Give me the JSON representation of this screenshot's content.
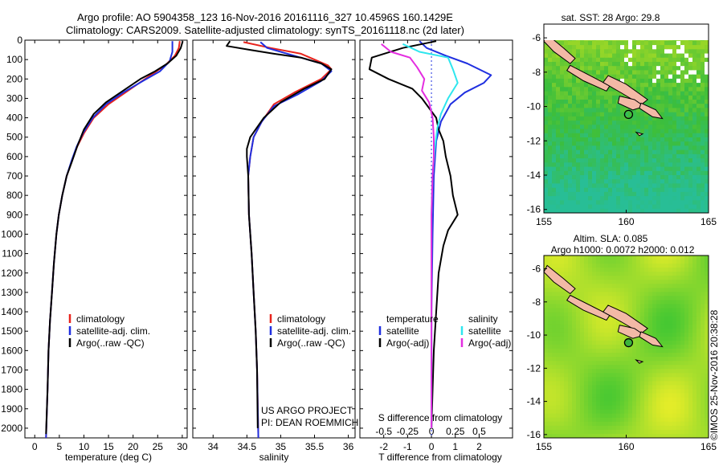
{
  "header": {
    "line1": "Argo profile: AO 5904358_123 16-Nov-2016 20161116_327 10.4596S 160.1429E",
    "line2": "Climatology: CARS2009. Satellite-adjusted climatology: synTS_20161118.nc (2d later)"
  },
  "colors": {
    "clim": "#e8231c",
    "sat": "#1f2fe0",
    "argo": "#000000",
    "sat_s": "#2ee6ee",
    "argo_s": "#e42ee0"
  },
  "credit": "©IMOS 25-Nov-2016 20:38:28",
  "chart_data": [
    {
      "type": "line",
      "panel": "temperature",
      "xlabel": "temperature (deg C)",
      "ylabel": "",
      "xlim": [
        -2,
        31
      ],
      "ylim": [
        2050,
        0
      ],
      "xticks": [
        0,
        5,
        10,
        15,
        20,
        25,
        30
      ],
      "yticks": [
        0,
        100,
        200,
        300,
        400,
        500,
        600,
        700,
        800,
        900,
        1000,
        1100,
        1200,
        1300,
        1400,
        1500,
        1600,
        1700,
        1800,
        1900,
        2000
      ],
      "legend": [
        "climatology",
        "satellite-adj. clim.",
        "Argo(..raw -QC)"
      ],
      "series": [
        {
          "name": "climatology",
          "color": "#e8231c",
          "points": [
            [
              29.5,
              5
            ],
            [
              29.3,
              40
            ],
            [
              28.5,
              80
            ],
            [
              26.5,
              130
            ],
            [
              23,
              190
            ],
            [
              19,
              260
            ],
            [
              15,
              330
            ],
            [
              12,
              400
            ],
            [
              10,
              480
            ],
            [
              8.6,
              550
            ],
            [
              7.6,
              620
            ],
            [
              6.5,
              700
            ],
            [
              5.6,
              800
            ],
            [
              4.9,
              900
            ],
            [
              4.4,
              1000
            ],
            [
              3.9,
              1150
            ],
            [
              3.5,
              1300
            ],
            [
              3.1,
              1450
            ],
            [
              2.8,
              1600
            ],
            [
              2.6,
              1800
            ],
            [
              2.3,
              2050
            ]
          ]
        },
        {
          "name": "satellite-adj. clim.",
          "color": "#1f2fe0",
          "points": [
            [
              28.0,
              5
            ],
            [
              28.0,
              60
            ],
            [
              27.4,
              110
            ],
            [
              25.5,
              160
            ],
            [
              22,
              210
            ],
            [
              18,
              270
            ],
            [
              14.5,
              330
            ],
            [
              11.8,
              400
            ],
            [
              9.8,
              480
            ],
            [
              8.5,
              550
            ],
            [
              7.5,
              620
            ],
            [
              6.5,
              700
            ],
            [
              5.6,
              800
            ],
            [
              4.9,
              900
            ],
            [
              4.4,
              1000
            ],
            [
              3.9,
              1150
            ],
            [
              3.5,
              1300
            ],
            [
              3.1,
              1450
            ],
            [
              2.8,
              1600
            ],
            [
              2.6,
              1800
            ],
            [
              2.3,
              2050
            ]
          ]
        },
        {
          "name": "Argo(..raw -QC)",
          "color": "#000000",
          "points": [
            [
              30.1,
              5
            ],
            [
              29.7,
              40
            ],
            [
              28.8,
              80
            ],
            [
              27,
              120
            ],
            [
              24.5,
              160
            ],
            [
              21.5,
              200
            ],
            [
              18,
              260
            ],
            [
              14.5,
              320
            ],
            [
              12,
              380
            ],
            [
              10,
              460
            ],
            [
              8.6,
              550
            ],
            [
              7.5,
              630
            ],
            [
              6.5,
              700
            ],
            [
              5.6,
              800
            ],
            [
              4.9,
              900
            ],
            [
              4.4,
              1000
            ],
            [
              3.9,
              1150
            ],
            [
              3.5,
              1300
            ],
            [
              3.1,
              1450
            ],
            [
              2.8,
              1600
            ],
            [
              2.6,
              1800
            ],
            [
              2.3,
              2030
            ]
          ]
        }
      ]
    },
    {
      "type": "line",
      "panel": "salinity",
      "xlabel": "salinity",
      "ylabel": "",
      "xlim": [
        33.7,
        36.1
      ],
      "ylim": [
        2050,
        0
      ],
      "xticks": [
        34,
        34.5,
        35,
        35.5,
        36
      ],
      "legend": [
        "climatology",
        "satellite-adj. clim.",
        "Argo(..raw -QC)"
      ],
      "series": [
        {
          "name": "climatology",
          "color": "#e8231c",
          "points": [
            [
              34.45,
              10
            ],
            [
              34.85,
              40
            ],
            [
              35.3,
              70
            ],
            [
              35.7,
              130
            ],
            [
              35.75,
              150
            ],
            [
              35.6,
              200
            ],
            [
              35.2,
              270
            ],
            [
              34.9,
              330
            ],
            [
              34.72,
              420
            ],
            [
              34.6,
              500
            ],
            [
              34.55,
              600
            ],
            [
              34.52,
              700
            ],
            [
              34.53,
              900
            ],
            [
              34.57,
              1100
            ],
            [
              34.6,
              1300
            ],
            [
              34.63,
              1500
            ],
            [
              34.65,
              1700
            ],
            [
              34.67,
              2050
            ]
          ]
        },
        {
          "name": "satellite-adj. clim.",
          "color": "#1f2fe0",
          "points": [
            [
              34.7,
              10
            ],
            [
              34.8,
              40
            ],
            [
              35.1,
              70
            ],
            [
              35.6,
              120
            ],
            [
              35.75,
              160
            ],
            [
              35.6,
              210
            ],
            [
              35.25,
              280
            ],
            [
              34.9,
              340
            ],
            [
              34.72,
              420
            ],
            [
              34.6,
              500
            ],
            [
              34.55,
              600
            ],
            [
              34.52,
              700
            ],
            [
              34.53,
              900
            ],
            [
              34.57,
              1100
            ],
            [
              34.6,
              1300
            ],
            [
              34.63,
              1500
            ],
            [
              34.65,
              1700
            ],
            [
              34.67,
              2050
            ]
          ]
        },
        {
          "name": "Argo(..raw -QC)",
          "color": "#000000",
          "points": [
            [
              34.25,
              5
            ],
            [
              34.2,
              30
            ],
            [
              34.55,
              50
            ],
            [
              34.9,
              70
            ],
            [
              35.3,
              90
            ],
            [
              35.6,
              120
            ],
            [
              35.75,
              150
            ],
            [
              35.65,
              200
            ],
            [
              35.35,
              250
            ],
            [
              35.0,
              320
            ],
            [
              34.75,
              400
            ],
            [
              34.55,
              500
            ],
            [
              34.5,
              560
            ],
            [
              34.5,
              600
            ],
            [
              34.52,
              700
            ],
            [
              34.53,
              900
            ],
            [
              34.57,
              1100
            ],
            [
              34.6,
              1300
            ],
            [
              34.63,
              1500
            ],
            [
              34.65,
              1700
            ],
            [
              34.66,
              2000
            ]
          ]
        }
      ]
    },
    {
      "type": "line",
      "panel": "differences",
      "xlabel": "T difference from climatology",
      "x2label": "S difference from climatology",
      "xlim": [
        -3,
        3.4
      ],
      "ylim": [
        2050,
        0
      ],
      "xticks": [
        -2,
        -1,
        0,
        1,
        2
      ],
      "x2ticks_labels": [
        "-0.5",
        "-0.25",
        "0",
        "0.25",
        "0.5"
      ],
      "legend_headers": [
        "temperature",
        "salinity"
      ],
      "legend": [
        "satellite",
        "Argo(-adj)",
        "satellite",
        "Argo(-adj)"
      ],
      "series": [
        {
          "name": "satellite",
          "color": "#1f2fe0",
          "points": [
            [
              -0.5,
              5
            ],
            [
              -0.2,
              40
            ],
            [
              0.6,
              80
            ],
            [
              1.5,
              120
            ],
            [
              2.5,
              180
            ],
            [
              2.2,
              220
            ],
            [
              1.4,
              270
            ],
            [
              0.8,
              330
            ],
            [
              0.4,
              420
            ],
            [
              0.2,
              520
            ],
            [
              0.1,
              700
            ],
            [
              0.05,
              1000
            ],
            [
              0,
              1400
            ],
            [
              0,
              2000
            ]
          ]
        },
        {
          "name": "Argo(-adj)",
          "color": "#000000",
          "points": [
            [
              0.2,
              5
            ],
            [
              -1.2,
              40
            ],
            [
              -2.5,
              90
            ],
            [
              -2.6,
              150
            ],
            [
              -1.8,
              200
            ],
            [
              -0.8,
              250
            ],
            [
              -0.4,
              300
            ],
            [
              -0.1,
              350
            ],
            [
              0.2,
              400
            ],
            [
              0.3,
              460
            ],
            [
              0.5,
              520
            ],
            [
              0.6,
              600
            ],
            [
              0.8,
              700
            ],
            [
              0.9,
              800
            ],
            [
              1.1,
              900
            ],
            [
              0.7,
              980
            ],
            [
              0.5,
              1060
            ],
            [
              0.3,
              1200
            ],
            [
              0.2,
              1400
            ],
            [
              0.1,
              1600
            ],
            [
              0.05,
              1800
            ],
            [
              0,
              2000
            ]
          ]
        },
        {
          "name": "satellite",
          "color": "#2ee6ee",
          "points": [
            [
              -1.2,
              20
            ],
            [
              -0.5,
              60
            ],
            [
              0.7,
              90
            ],
            [
              0.9,
              150
            ],
            [
              1.1,
              220
            ],
            [
              0.7,
              300
            ],
            [
              0.4,
              380
            ],
            [
              0.25,
              450
            ],
            [
              0.15,
              550
            ],
            [
              0.05,
              700
            ],
            [
              0,
              900
            ],
            [
              0,
              2000
            ]
          ]
        },
        {
          "name": "Argo(-adj)",
          "color": "#e42ee0",
          "points": [
            [
              -2.1,
              20
            ],
            [
              -1.7,
              60
            ],
            [
              -0.9,
              90
            ],
            [
              -0.6,
              140
            ],
            [
              -0.3,
              200
            ],
            [
              -0.4,
              260
            ],
            [
              -0.1,
              320
            ],
            [
              0.05,
              400
            ],
            [
              0.1,
              500
            ],
            [
              0.1,
              600
            ],
            [
              0.05,
              700
            ],
            [
              0,
              900
            ],
            [
              0,
              1400
            ],
            [
              0,
              1700
            ],
            [
              0,
              2000
            ]
          ]
        }
      ]
    },
    {
      "type": "heatmap",
      "panel": "sat-sst-map",
      "title": "sat. SST: 28 Argo: 29.8",
      "xlim": [
        155,
        165
      ],
      "ylim": [
        -16.2,
        -5.2
      ],
      "xticks": [
        155,
        160,
        165
      ],
      "yticks": [
        -6,
        -8,
        -10,
        -12,
        -14,
        -16
      ],
      "marker": {
        "lon": 160.1429,
        "lat": -10.4596
      }
    },
    {
      "type": "heatmap",
      "panel": "altim-sla-map",
      "title": "Altim. SLA: 0.085",
      "subtitle": "Argo h1000: 0.0072 h2000: 0.012",
      "xlim": [
        155,
        165
      ],
      "ylim": [
        -16.2,
        -5.2
      ],
      "xticks": [
        155,
        160,
        165
      ],
      "yticks": [
        -6,
        -8,
        -10,
        -12,
        -14,
        -16
      ],
      "marker": {
        "lon": 160.1429,
        "lat": -10.4596
      }
    }
  ],
  "labels": {
    "legend_t": [
      "climatology",
      "satellite-adj. clim.",
      "Argo(..raw -QC)"
    ],
    "legend_s": [
      "climatology",
      "satellite-adj. clim.",
      "Argo(..raw -QC)"
    ],
    "legend_d_head_t": "temperature",
    "legend_d_head_s": "salinity",
    "legend_d": [
      "satellite",
      "Argo(-adj)",
      "satellite",
      "Argo(-adj)"
    ],
    "project1": "US ARGO PROJECT",
    "project2": "PI: DEAN ROEMMICH"
  }
}
